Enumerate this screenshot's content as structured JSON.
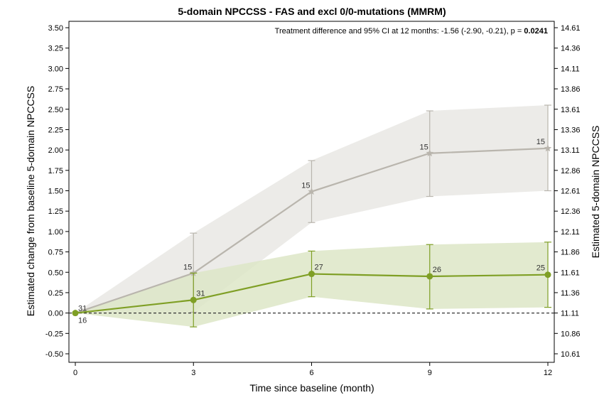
{
  "chart_data": {
    "type": "line",
    "title": "5-domain NPCCSS - FAS and excl 0/0-mutations (MMRM)",
    "xlabel": "Time since baseline (month)",
    "ylabel": "Estimated change from baseline 5-domain NPCCSS",
    "ylabel_right": "Estimated 5-domain NPCCSS",
    "x_ticks": [
      "0",
      "3",
      "6",
      "9",
      "12"
    ],
    "xlim": [
      0,
      12
    ],
    "ylim": [
      -0.55,
      3.55
    ],
    "y_ticks": [
      -0.5,
      -0.25,
      0.0,
      0.25,
      0.5,
      0.75,
      1.0,
      1.25,
      1.5,
      1.75,
      2.0,
      2.25,
      2.5,
      2.75,
      3.0,
      3.25,
      3.5
    ],
    "y_tick_labels": [
      "-0.50",
      "-0.25",
      "0.00",
      "0.25",
      "0.50",
      "0.75",
      "1.00",
      "1.25",
      "1.50",
      "1.75",
      "2.00",
      "2.25",
      "2.50",
      "2.75",
      "3.00",
      "3.25",
      "3.50"
    ],
    "y_right_tick_labels": [
      "10.61",
      "10.86",
      "11.11",
      "11.36",
      "11.61",
      "11.86",
      "12.11",
      "12.36",
      "12.61",
      "12.86",
      "13.11",
      "13.36",
      "13.61",
      "13.86",
      "14.11",
      "14.36",
      "14.61"
    ],
    "reference_line": 0,
    "annotation": {
      "text": "Treatment difference and 95% CI at 12 months: -1.56 (-2.90, -0.21), p = ",
      "p_value": "0.0241"
    },
    "series": [
      {
        "color": "#b9b5ad",
        "band_color": "#e9e7e4",
        "marker": "star",
        "x": [
          0,
          3,
          6,
          9,
          12
        ],
        "y": [
          0.0,
          0.49,
          1.49,
          1.96,
          2.02
        ],
        "lower": [
          0.0,
          0.01,
          1.11,
          1.43,
          1.5
        ],
        "upper": [
          0.0,
          0.98,
          1.87,
          2.48,
          2.55
        ],
        "n": [
          "16",
          "15",
          "15",
          "15",
          "15"
        ]
      },
      {
        "color": "#7f9f25",
        "band_color": "#dde6c7",
        "marker": "circle",
        "x": [
          0,
          3,
          6,
          9,
          12
        ],
        "y": [
          0.0,
          0.16,
          0.48,
          0.45,
          0.47
        ],
        "lower": [
          0.0,
          -0.17,
          0.2,
          0.05,
          0.07
        ],
        "upper": [
          0.0,
          0.49,
          0.76,
          0.84,
          0.87
        ],
        "n": [
          "31",
          "31",
          "27",
          "26",
          "25"
        ]
      }
    ]
  }
}
